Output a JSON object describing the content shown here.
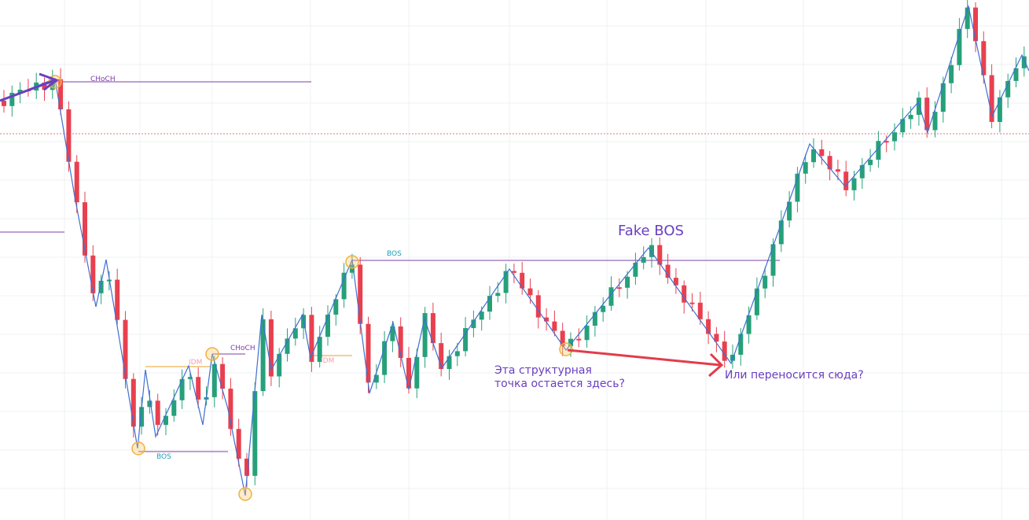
{
  "labels": [
    "CHoCH",
    "BOS",
    "BOS",
    "IDM",
    "CHoCH",
    "IDM",
    "Fake BOS"
  ],
  "notes": {
    "first": [
      "Эта структурная",
      "точка остается здесь?"
    ],
    "second": "Или переносится сюда?"
  }
}
